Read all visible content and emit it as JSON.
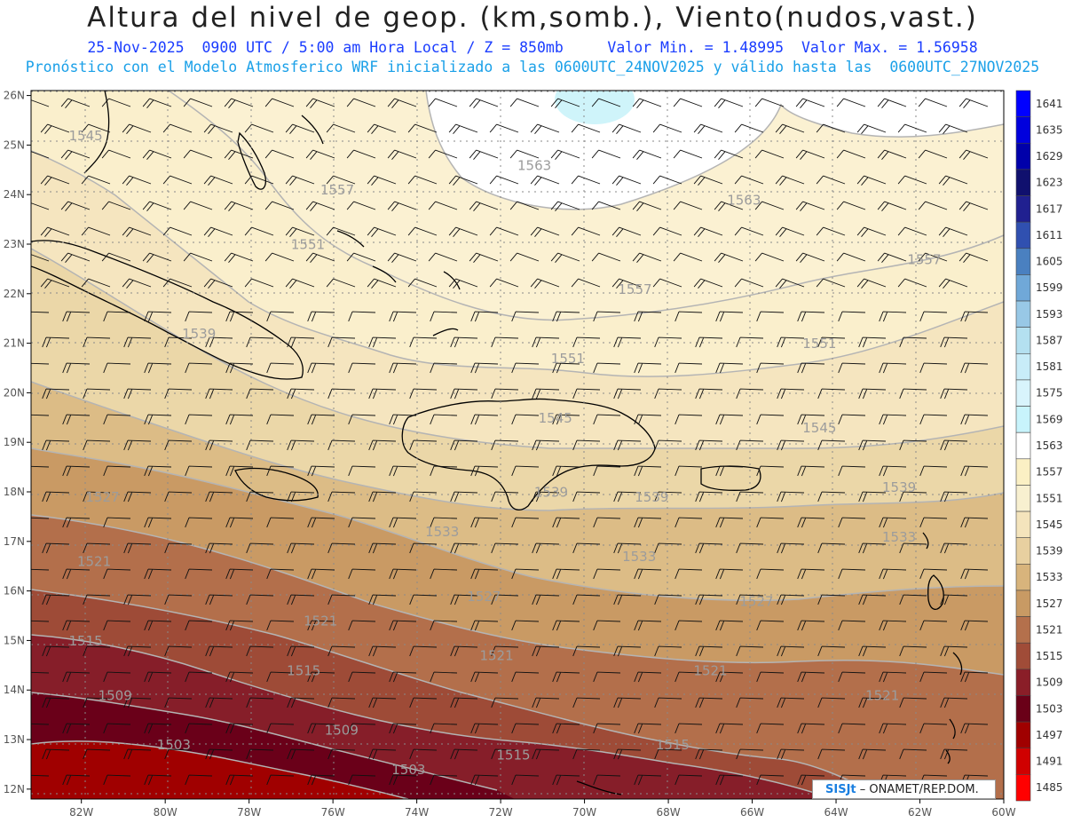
{
  "header": {
    "title": "Altura del nivel de geop. (km,somb.), Viento(nudos,vast.)",
    "subtitle_line1": "25-Nov-2025  0900 UTC / 5:00 am Hora Local / Z = 850mb     Valor Min. = 1.48995  Valor Max. = 1.56958",
    "subtitle_line2": "Pronóstico con el Modelo Atmosferico WRF inicializado a las 0600UTC_24NOV2025 y válido hasta las  0600UTC_27NOV2025"
  },
  "map": {
    "lon_range": [
      -83.2,
      -60
    ],
    "lat_range": [
      11.8,
      26.1
    ],
    "lon_ticks": [
      "82W",
      "80W",
      "78W",
      "76W",
      "74W",
      "72W",
      "70W",
      "68W",
      "66W",
      "64W",
      "62W",
      "60W"
    ],
    "lat_ticks": [
      "12N",
      "13N",
      "14N",
      "15N",
      "16N",
      "17N",
      "18N",
      "19N",
      "20N",
      "21N",
      "22N",
      "23N",
      "24N",
      "25N",
      "26N"
    ],
    "contour_labels": [
      {
        "text": "1545",
        "lon": -82.3,
        "lat": 25.1
      },
      {
        "text": "1563",
        "lon": -71.6,
        "lat": 24.5
      },
      {
        "text": "1557",
        "lon": -76.3,
        "lat": 24.0
      },
      {
        "text": "1563",
        "lon": -66.6,
        "lat": 23.8
      },
      {
        "text": "1551",
        "lon": -77.0,
        "lat": 22.9
      },
      {
        "text": "1557",
        "lon": -62.3,
        "lat": 22.6
      },
      {
        "text": "1557",
        "lon": -69.2,
        "lat": 22.0
      },
      {
        "text": "1539",
        "lon": -79.6,
        "lat": 21.1
      },
      {
        "text": "1551",
        "lon": -70.8,
        "lat": 20.6
      },
      {
        "text": "1551",
        "lon": -64.8,
        "lat": 20.9
      },
      {
        "text": "1545",
        "lon": -71.1,
        "lat": 19.4
      },
      {
        "text": "1545",
        "lon": -64.8,
        "lat": 19.2
      },
      {
        "text": "1539",
        "lon": -71.2,
        "lat": 17.9
      },
      {
        "text": "1539",
        "lon": -68.8,
        "lat": 17.8
      },
      {
        "text": "1539",
        "lon": -62.9,
        "lat": 18.0
      },
      {
        "text": "1527",
        "lon": -81.9,
        "lat": 17.8
      },
      {
        "text": "1533",
        "lon": -73.8,
        "lat": 17.1
      },
      {
        "text": "1533",
        "lon": -62.9,
        "lat": 17.0
      },
      {
        "text": "1533",
        "lon": -69.1,
        "lat": 16.6
      },
      {
        "text": "1521",
        "lon": -82.1,
        "lat": 16.5
      },
      {
        "text": "1527",
        "lon": -72.8,
        "lat": 15.8
      },
      {
        "text": "1527",
        "lon": -66.3,
        "lat": 15.7
      },
      {
        "text": "1521",
        "lon": -76.7,
        "lat": 15.3
      },
      {
        "text": "1515",
        "lon": -82.3,
        "lat": 14.9
      },
      {
        "text": "1521",
        "lon": -72.5,
        "lat": 14.6
      },
      {
        "text": "1515",
        "lon": -77.1,
        "lat": 14.3
      },
      {
        "text": "1521",
        "lon": -67.4,
        "lat": 14.3
      },
      {
        "text": "1521",
        "lon": -63.3,
        "lat": 13.8
      },
      {
        "text": "1509",
        "lon": -81.6,
        "lat": 13.8
      },
      {
        "text": "1509",
        "lon": -76.2,
        "lat": 13.1
      },
      {
        "text": "1503",
        "lon": -80.2,
        "lat": 12.8
      },
      {
        "text": "1515",
        "lon": -72.1,
        "lat": 12.6
      },
      {
        "text": "1515",
        "lon": -68.3,
        "lat": 12.8
      },
      {
        "text": "1503",
        "lon": -74.6,
        "lat": 12.3
      }
    ]
  },
  "colorbar": {
    "levels": [
      "1641",
      "1635",
      "1629",
      "1623",
      "1617",
      "1611",
      "1605",
      "1599",
      "1593",
      "1587",
      "1581",
      "1575",
      "1569",
      "1563",
      "1557",
      "1551",
      "1545",
      "1539",
      "1533",
      "1527",
      "1521",
      "1515",
      "1509",
      "1503",
      "1497",
      "1491",
      "1485"
    ],
    "colors": [
      "#0000ff",
      "#0000dd",
      "#0000aa",
      "#10106e",
      "#202090",
      "#3050b0",
      "#4a80c0",
      "#70a8d8",
      "#98c8e6",
      "#b4e0f0",
      "#c8ecf8",
      "#d8f4fc",
      "#c8f4fc",
      "#ffffff",
      "#fbf0c4",
      "#f8f0d0",
      "#f4e4bc",
      "#e8d0a0",
      "#d8b47c",
      "#c89a64",
      "#b4704c",
      "#a04c38",
      "#8a1e28",
      "#6a0018",
      "#a00000",
      "#d00000",
      "#ff0000"
    ]
  },
  "credit": {
    "logo": "SISJt",
    "text": " – ONAMET/REP.DOM."
  }
}
